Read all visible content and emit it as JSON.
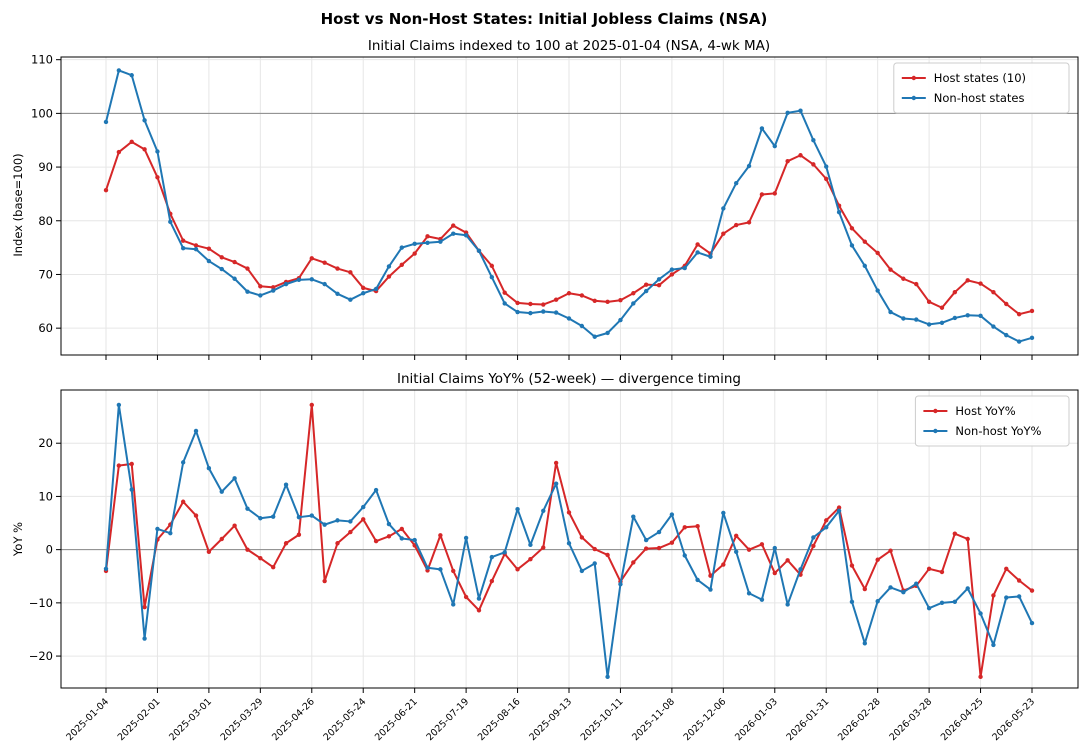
{
  "figure": {
    "title": "Host vs Non-Host States: Initial Jobless Claims (NSA)"
  },
  "colors": {
    "host": "#d62728",
    "nonhost": "#1f77b4",
    "refline": "#888888",
    "grid": "#e6e6e6"
  },
  "x_ticks": [
    "2025-01-04",
    "2025-02-01",
    "2025-03-01",
    "2025-03-29",
    "2025-04-26",
    "2025-05-24",
    "2025-06-21",
    "2025-07-19",
    "2025-08-16",
    "2025-09-13",
    "2025-10-11",
    "2025-11-08",
    "2025-12-06",
    "2026-01-03",
    "2026-01-31",
    "2026-02-28",
    "2026-03-28",
    "2026-04-25",
    "2026-05-23"
  ],
  "chart_data": [
    {
      "type": "line",
      "title": "Initial Claims indexed to 100 at 2025-01-04 (NSA, 4-wk MA)",
      "xlabel": "",
      "ylabel": "Index (base=100)",
      "x_start": "2025-01-04",
      "x_step_days": 7,
      "ylim": [
        55,
        110.5
      ],
      "yticks": [
        60,
        70,
        80,
        90,
        100,
        110
      ],
      "reference_line": 100,
      "grid": true,
      "legend": "top-right",
      "series": [
        {
          "name": "Host states (10)",
          "color": "#d62728",
          "values": [
            85.7,
            92.8,
            94.7,
            93.3,
            88.1,
            81.3,
            76.3,
            75.4,
            74.8,
            73.2,
            72.3,
            71.1,
            67.8,
            67.6,
            68.6,
            69.3,
            73.0,
            72.2,
            71.1,
            70.4,
            67.5,
            66.9,
            69.6,
            71.8,
            73.9,
            77.1,
            76.6,
            79.1,
            77.8,
            74.4,
            71.6,
            66.6,
            64.7,
            64.5,
            64.4,
            65.3,
            66.5,
            66.1,
            65.1,
            64.9,
            65.2,
            66.5,
            68.1,
            68.0,
            70.0,
            71.6,
            75.6,
            73.9,
            77.6,
            79.2,
            79.7,
            84.9,
            85.1,
            91.1,
            92.2,
            90.5,
            87.8,
            82.8,
            78.6,
            76.1,
            74.0,
            70.9,
            69.2,
            68.2,
            64.9,
            63.8,
            66.7,
            68.9,
            68.3,
            66.7,
            64.5,
            62.6,
            63.2
          ]
        },
        {
          "name": "Non-host states",
          "color": "#1f77b4",
          "values": [
            98.4,
            108.0,
            107.1,
            98.7,
            92.9,
            79.8,
            74.9,
            74.7,
            72.5,
            71.0,
            69.2,
            66.8,
            66.1,
            67.0,
            68.2,
            69.0,
            69.1,
            68.2,
            66.4,
            65.3,
            66.5,
            67.3,
            71.5,
            75.0,
            75.7,
            75.9,
            76.1,
            77.6,
            77.3,
            74.4,
            69.5,
            64.6,
            63.0,
            62.8,
            63.1,
            62.9,
            61.8,
            60.4,
            58.4,
            59.1,
            61.5,
            64.6,
            66.9,
            69.1,
            70.9,
            71.2,
            74.1,
            73.3,
            82.3,
            87.0,
            90.2,
            97.2,
            93.9,
            100.1,
            100.5,
            95.0,
            90.1,
            81.6,
            75.4,
            71.6,
            67.0,
            63.0,
            61.8,
            61.6,
            60.7,
            61.0,
            61.9,
            62.4,
            62.3,
            60.3,
            58.7,
            57.5,
            58.2
          ]
        }
      ]
    },
    {
      "type": "line",
      "title": "Initial Claims YoY% (52-week) — divergence timing",
      "xlabel": "",
      "ylabel": "YoY %",
      "x_start": "2025-01-04",
      "x_step_days": 7,
      "ylim": [
        -26,
        30
      ],
      "yticks": [
        -20,
        -10,
        0,
        10,
        20
      ],
      "reference_line": 0,
      "grid": true,
      "legend": "top-right",
      "series": [
        {
          "name": "Host YoY%",
          "color": "#d62728",
          "values": [
            -4.0,
            15.8,
            16.1,
            -10.8,
            1.9,
            4.7,
            9.0,
            6.4,
            -0.4,
            2.0,
            4.5,
            0.0,
            -1.6,
            -3.3,
            1.2,
            2.8,
            27.2,
            -5.9,
            1.2,
            3.3,
            5.7,
            1.6,
            2.5,
            3.9,
            0.8,
            -3.9,
            2.7,
            -4.0,
            -8.9,
            -11.4,
            -5.9,
            -0.8,
            -3.7,
            -1.8,
            0.4,
            16.3,
            7.0,
            2.3,
            0.1,
            -1.0,
            -6.0,
            -2.4,
            0.2,
            0.3,
            1.3,
            4.2,
            4.4,
            -4.9,
            -2.8,
            2.6,
            0.0,
            1.0,
            -4.4,
            -2.0,
            -4.7,
            0.7,
            5.5,
            7.9,
            -3.0,
            -7.4,
            -1.9,
            -0.2,
            -7.7,
            -6.8,
            -3.6,
            -4.2,
            3.0,
            2.0,
            -23.9,
            -8.6,
            -3.6,
            -5.8,
            -7.7
          ]
        },
        {
          "name": "Non-host YoY%",
          "color": "#1f77b4",
          "values": [
            -3.6,
            27.2,
            11.3,
            -16.7,
            3.9,
            3.1,
            16.4,
            22.3,
            15.3,
            10.9,
            13.4,
            7.7,
            5.9,
            6.2,
            12.2,
            6.1,
            6.4,
            4.7,
            5.5,
            5.3,
            8.0,
            11.2,
            4.8,
            2.1,
            1.8,
            -3.4,
            -3.7,
            -10.3,
            2.2,
            -9.2,
            -1.4,
            -0.5,
            7.6,
            0.9,
            7.3,
            12.4,
            1.2,
            -4.0,
            -2.6,
            -23.9,
            -6.5,
            6.2,
            1.8,
            3.3,
            6.6,
            -1.1,
            -5.7,
            -7.5,
            6.9,
            -0.4,
            -8.2,
            -9.4,
            0.3,
            -10.3,
            -3.7,
            2.3,
            4.2,
            7.3,
            -9.8,
            -17.6,
            -9.7,
            -7.1,
            -8.0,
            -6.4,
            -11.0,
            -10.0,
            -9.8,
            -7.3,
            -12.0,
            -17.9,
            -9.0,
            -8.8,
            -13.8
          ]
        }
      ]
    }
  ]
}
